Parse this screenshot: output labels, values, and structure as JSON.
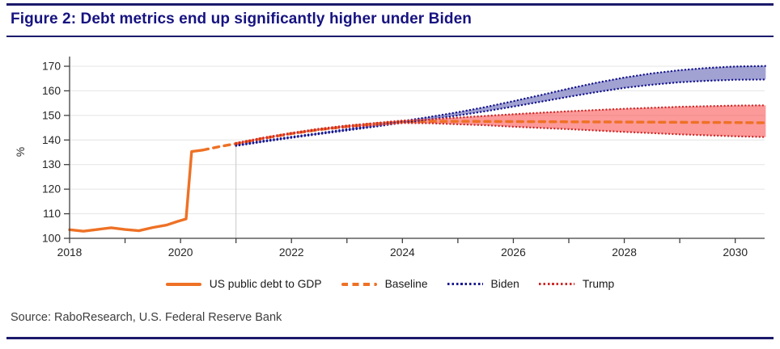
{
  "page": {
    "title": "Figure 2: Debt metrics end up significantly higher under Biden",
    "source": "Source: RaboResearch, U.S. Federal Reserve Bank",
    "accent_navy": "#1b1a6b"
  },
  "chart_data": {
    "type": "line",
    "title": "Figure 2: Debt metrics end up significantly higher under Biden",
    "xlabel": "",
    "ylabel": "%",
    "ylim": [
      100,
      170
    ],
    "yticks": [
      100,
      110,
      120,
      130,
      140,
      150,
      160,
      170
    ],
    "xlim": [
      2018,
      2030.55
    ],
    "xticks": [
      2018,
      2019,
      2020,
      2021,
      2022,
      2023,
      2024,
      2025,
      2026,
      2027,
      2028,
      2029,
      2030
    ],
    "xtick_labels": [
      "2018",
      "2020",
      "2022",
      "2024",
      "2026",
      "2028",
      "2030"
    ],
    "xtick_label_years": [
      2018,
      2020,
      2022,
      2024,
      2026,
      2028,
      2030
    ],
    "grid": "horizontal-light",
    "legend_position": "bottom",
    "forecast_start": 2021,
    "forecast_line_color": "#c8c8c8",
    "axis_color": "#3f3f3f",
    "grid_color": "#e4e4e4",
    "series": [
      {
        "name": "US public debt to GDP",
        "style": "solid",
        "color": "#ee7125",
        "x": [
          2018.0,
          2018.25,
          2018.5,
          2018.75,
          2019.0,
          2019.25,
          2019.5,
          2019.75,
          2019.95,
          2020.1,
          2020.2,
          2020.4
        ],
        "y": [
          103.5,
          102.9,
          103.6,
          104.3,
          103.6,
          103.1,
          104.4,
          105.4,
          106.9,
          107.9,
          135.3,
          135.9
        ]
      },
      {
        "name": "Baseline",
        "style": "dashed",
        "color": "#ee7125",
        "x": [
          2020.4,
          2020.7,
          2021,
          2021.5,
          2022,
          2022.5,
          2023,
          2023.5,
          2024,
          2024.5,
          2025,
          2026,
          2027,
          2028,
          2029,
          2030,
          2030.55
        ],
        "y": [
          135.9,
          137.3,
          138.5,
          140.7,
          142.6,
          144.2,
          145.5,
          146.6,
          147.4,
          147.6,
          147.6,
          147.5,
          147.4,
          147.3,
          147.2,
          147.1,
          147.0
        ]
      },
      {
        "name": "Biden",
        "style": "dotted",
        "color": "#16168e",
        "band_fill": "rgba(58,60,160,0.48)",
        "x": [
          2021,
          2021.5,
          2022,
          2022.5,
          2023,
          2023.5,
          2024,
          2024.5,
          2025,
          2025.5,
          2026,
          2026.5,
          2027,
          2027.5,
          2028,
          2028.5,
          2029,
          2029.5,
          2030,
          2030.55
        ],
        "y_upper": [
          138.0,
          139.7,
          141.3,
          142.8,
          144.4,
          146.0,
          147.7,
          149.4,
          151.3,
          153.4,
          155.8,
          158.3,
          160.9,
          163.3,
          165.4,
          167.1,
          168.4,
          169.3,
          169.9,
          170.1
        ],
        "y_lower": [
          137.6,
          139.3,
          140.9,
          142.4,
          143.9,
          145.4,
          147.0,
          148.4,
          150.0,
          151.7,
          153.6,
          155.6,
          157.6,
          159.5,
          161.2,
          162.5,
          163.5,
          164.1,
          164.5,
          164.6
        ]
      },
      {
        "name": "Trump",
        "style": "dotted",
        "color": "#cf2b2b",
        "band_fill": "rgba(250,70,70,0.55)",
        "x": [
          2021,
          2021.5,
          2022,
          2022.5,
          2023,
          2023.5,
          2024,
          2024.5,
          2025,
          2025.5,
          2026,
          2027,
          2028,
          2029,
          2030,
          2030.55
        ],
        "y_upper": [
          138.8,
          141.0,
          142.9,
          144.6,
          145.9,
          146.9,
          147.9,
          148.4,
          149.1,
          149.8,
          150.5,
          151.7,
          152.7,
          153.5,
          154.0,
          154.1
        ],
        "y_lower": [
          138.4,
          140.6,
          142.5,
          144.1,
          145.3,
          146.0,
          146.9,
          146.8,
          146.4,
          146.0,
          145.4,
          144.4,
          143.3,
          142.3,
          141.5,
          141.2
        ]
      }
    ]
  }
}
